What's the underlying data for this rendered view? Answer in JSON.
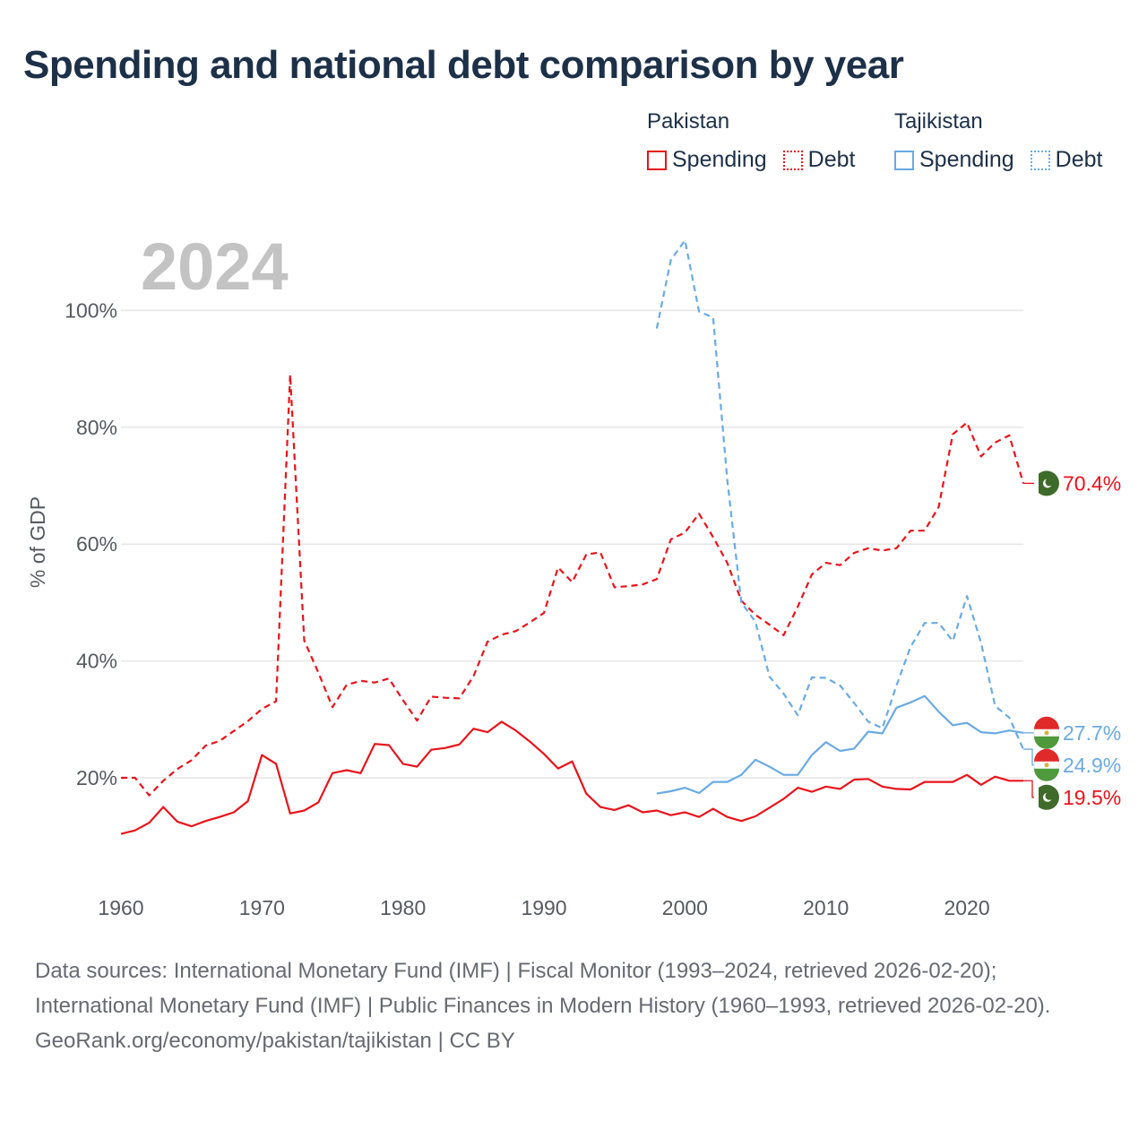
{
  "title": "Spending and national debt comparison by year",
  "year_label": "2024",
  "legend": {
    "groups": [
      {
        "name": "Pakistan",
        "color": "#e8131b",
        "items": [
          {
            "label": "Spending",
            "style": "solid"
          },
          {
            "label": "Debt",
            "style": "dotted"
          }
        ]
      },
      {
        "name": "Tajikistan",
        "color": "#6aaae4",
        "items": [
          {
            "label": "Spending",
            "style": "solid"
          },
          {
            "label": "Debt",
            "style": "dotted"
          }
        ]
      }
    ]
  },
  "footer": {
    "sources": "Data sources: International Monetary Fund (IMF) | Fiscal Monitor (1993–2024, retrieved 2026-02-20); International Monetary Fund (IMF) | Public Finances in Modern History (1960–1993, retrieved 2026-02-20).",
    "credit": "GeoRank.org/economy/pakistan/tajikistan | CC BY"
  },
  "chart_data": {
    "type": "line",
    "title": "Spending and national debt comparison by year",
    "xlabel": "",
    "ylabel": "% of GDP",
    "xlim": [
      1960,
      2024
    ],
    "ylim": [
      0,
      115
    ],
    "x_ticks": [
      1960,
      1970,
      1980,
      1990,
      2000,
      2010,
      2020
    ],
    "y_ticks": [
      20,
      40,
      60,
      80,
      100
    ],
    "y_tick_labels": [
      "20%",
      "40%",
      "60%",
      "80%",
      "100%"
    ],
    "x_tick_labels": [
      "1960",
      "1970",
      "1980",
      "1990",
      "2000",
      "2010",
      "2020"
    ],
    "grid": "horizontal",
    "series": [
      {
        "name": "Pakistan Debt",
        "country": "Pakistan",
        "measure": "Debt",
        "color": "#e8131b",
        "dash": "dashed",
        "end_label": "70.4%",
        "end_value": 70.4,
        "flag": "pakistan",
        "x": [
          1960,
          1961,
          1962,
          1963,
          1964,
          1965,
          1966,
          1967,
          1968,
          1969,
          1970,
          1971,
          1972,
          1973,
          1974,
          1975,
          1976,
          1977,
          1978,
          1979,
          1980,
          1981,
          1982,
          1983,
          1984,
          1985,
          1986,
          1987,
          1988,
          1989,
          1990,
          1991,
          1992,
          1993,
          1994,
          1995,
          1996,
          1997,
          1998,
          1999,
          2000,
          2001,
          2002,
          2003,
          2004,
          2005,
          2006,
          2007,
          2008,
          2009,
          2010,
          2011,
          2012,
          2013,
          2014,
          2015,
          2016,
          2017,
          2018,
          2019,
          2020,
          2021,
          2022,
          2023,
          2024
        ],
        "values": [
          20,
          20,
          17,
          19.5,
          21.5,
          23,
          25.5,
          26.3,
          28,
          29.7,
          31.8,
          33.1,
          89,
          43.5,
          38,
          32.1,
          35.9,
          36.6,
          36.3,
          37,
          33.3,
          29.8,
          33.9,
          33.7,
          33.6,
          37.4,
          43.3,
          44.5,
          45.1,
          46.6,
          48.2,
          56,
          53.5,
          58.2,
          58.6,
          52.6,
          52.8,
          53.1,
          54,
          60.8,
          62,
          65.2,
          61.2,
          56.8,
          50.3,
          47.9,
          46.2,
          44.4,
          49.3,
          54.8,
          56.8,
          56.4,
          58.5,
          59.3,
          58.9,
          59.3,
          62.3,
          62.3,
          66.4,
          78.8,
          80.8,
          75,
          77.4,
          78.6,
          70.4
        ]
      },
      {
        "name": "Pakistan Spending",
        "country": "Pakistan",
        "measure": "Spending",
        "color": "#e8131b",
        "dash": "solid",
        "end_label": "19.5%",
        "end_value": 19.5,
        "flag": "pakistan",
        "x": [
          1960,
          1961,
          1962,
          1963,
          1964,
          1965,
          1966,
          1967,
          1968,
          1969,
          1970,
          1971,
          1972,
          1973,
          1974,
          1975,
          1976,
          1977,
          1978,
          1979,
          1980,
          1981,
          1982,
          1983,
          1984,
          1985,
          1986,
          1987,
          1988,
          1989,
          1990,
          1991,
          1992,
          1993,
          1994,
          1995,
          1996,
          1997,
          1998,
          1999,
          2000,
          2001,
          2002,
          2003,
          2004,
          2005,
          2006,
          2007,
          2008,
          2009,
          2010,
          2011,
          2012,
          2013,
          2014,
          2015,
          2016,
          2017,
          2018,
          2019,
          2020,
          2021,
          2022,
          2023,
          2024
        ],
        "values": [
          10.4,
          11,
          12.3,
          15,
          12.5,
          11.7,
          12.6,
          13.3,
          14.1,
          16,
          23.9,
          22.4,
          13.9,
          14.4,
          15.8,
          20.8,
          21.3,
          20.8,
          25.8,
          25.6,
          22.4,
          21.9,
          24.8,
          25.1,
          25.7,
          28.4,
          27.8,
          29.6,
          28.1,
          26.2,
          24.1,
          21.6,
          22.8,
          17.3,
          15,
          14.5,
          15.3,
          14.1,
          14.4,
          13.6,
          14.1,
          13.3,
          14.7,
          13.3,
          12.6,
          13.4,
          14.9,
          16.4,
          18.3,
          17.6,
          18.5,
          18.1,
          19.7,
          19.8,
          18.5,
          18.1,
          18,
          19.3,
          19.3,
          19.3,
          20.5,
          18.8,
          20.2,
          19.5,
          19.5
        ]
      },
      {
        "name": "Tajikistan Debt",
        "country": "Tajikistan",
        "measure": "Debt",
        "color": "#6aaae4",
        "dash": "dashed",
        "end_label": "24.9%",
        "end_value": 24.9,
        "flag": "tajikistan",
        "x": [
          1998,
          1999,
          2000,
          2001,
          2002,
          2003,
          2004,
          2005,
          2006,
          2007,
          2008,
          2009,
          2010,
          2011,
          2012,
          2013,
          2014,
          2015,
          2016,
          2017,
          2018,
          2019,
          2020,
          2021,
          2022,
          2023,
          2024
        ],
        "values": [
          96.9,
          108.6,
          112,
          99.8,
          98.8,
          71,
          50,
          46.7,
          37.3,
          34.4,
          30.7,
          37.2,
          37.1,
          35.8,
          32.8,
          29.6,
          28.5,
          35.8,
          42.4,
          46.5,
          46.5,
          43.4,
          51.1,
          43.1,
          32.3,
          30.3,
          24.9
        ]
      },
      {
        "name": "Tajikistan Spending",
        "country": "Tajikistan",
        "measure": "Spending",
        "color": "#6aaae4",
        "dash": "solid",
        "end_label": "27.7%",
        "end_value": 27.7,
        "flag": "tajikistan",
        "x": [
          1998,
          1999,
          2000,
          2001,
          2002,
          2003,
          2004,
          2005,
          2006,
          2007,
          2008,
          2009,
          2010,
          2011,
          2012,
          2013,
          2014,
          2015,
          2016,
          2017,
          2018,
          2019,
          2020,
          2021,
          2022,
          2023,
          2024
        ],
        "values": [
          17.3,
          17.7,
          18.3,
          17.4,
          19.3,
          19.3,
          20.5,
          23.1,
          21.9,
          20.5,
          20.5,
          23.9,
          26.1,
          24.6,
          25,
          27.9,
          27.6,
          32,
          32.9,
          34,
          31.3,
          29,
          29.4,
          27.8,
          27.6,
          28.1,
          27.7
        ]
      }
    ]
  }
}
